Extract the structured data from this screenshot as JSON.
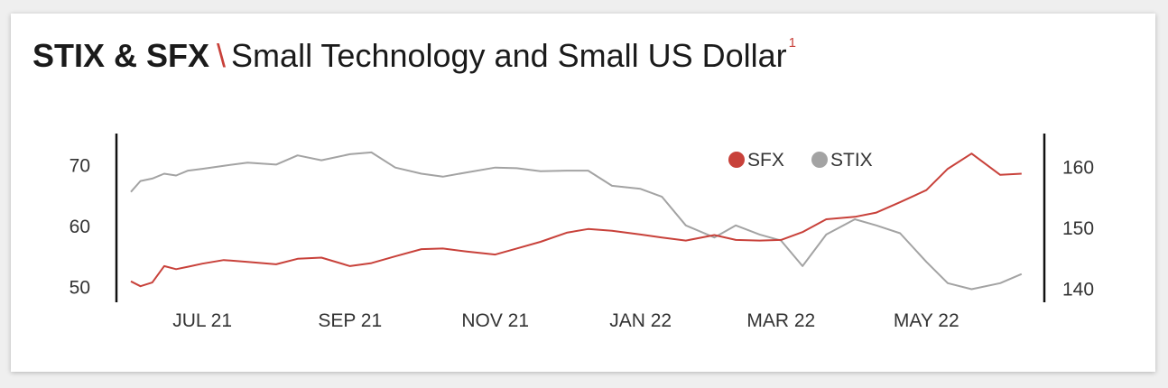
{
  "title": {
    "bold": "STIX & SFX",
    "separator": "\\",
    "rest": "Small Technology and Small US Dollar",
    "footnote": "1"
  },
  "colors": {
    "sfx": "#c8413a",
    "stix": "#a3a3a3",
    "title_separator": "#c8413a"
  },
  "chart_data": {
    "type": "line",
    "title": "STIX & SFX \\ Small Technology and Small US Dollar",
    "legend_position": "top-right",
    "grid": false,
    "x_start": "2021-06-01",
    "x_end": "2022-06-15",
    "x_ticks": [
      {
        "date": "2021-07-01",
        "label": "JUL 21"
      },
      {
        "date": "2021-09-01",
        "label": "SEP 21"
      },
      {
        "date": "2021-11-01",
        "label": "NOV 21"
      },
      {
        "date": "2022-01-01",
        "label": "JAN 22"
      },
      {
        "date": "2022-03-01",
        "label": "MAR 22"
      },
      {
        "date": "2022-05-01",
        "label": "MAY 22"
      }
    ],
    "y_left": {
      "range": [
        48,
        75
      ],
      "ticks": [
        50,
        60,
        70
      ]
    },
    "y_right": {
      "range": [
        138.3,
        165.3
      ],
      "ticks": [
        140,
        150,
        160
      ]
    },
    "series": [
      {
        "name": "SFX",
        "axis": "left",
        "color": "#c8413a",
        "x": [
          "2021-06-01",
          "2021-06-05",
          "2021-06-10",
          "2021-06-15",
          "2021-06-20",
          "2021-06-25",
          "2021-07-01",
          "2021-07-10",
          "2021-07-20",
          "2021-08-01",
          "2021-08-10",
          "2021-08-20",
          "2021-09-01",
          "2021-09-10",
          "2021-09-20",
          "2021-10-01",
          "2021-10-10",
          "2021-10-20",
          "2021-11-01",
          "2021-11-10",
          "2021-11-20",
          "2021-12-01",
          "2021-12-10",
          "2021-12-20",
          "2022-01-01",
          "2022-01-10",
          "2022-01-20",
          "2022-02-01",
          "2022-02-10",
          "2022-02-20",
          "2022-03-01",
          "2022-03-10",
          "2022-03-20",
          "2022-04-01",
          "2022-04-10",
          "2022-04-20",
          "2022-05-01",
          "2022-05-10",
          "2022-05-20",
          "2022-06-01",
          "2022-06-10"
        ],
        "values": [
          51.0,
          50.2,
          50.8,
          53.5,
          53.0,
          53.4,
          53.9,
          54.5,
          54.2,
          53.8,
          54.7,
          54.9,
          53.5,
          54.0,
          55.1,
          56.3,
          56.4,
          55.9,
          55.4,
          56.4,
          57.5,
          59.0,
          59.6,
          59.3,
          58.7,
          58.2,
          57.7,
          58.6,
          57.8,
          57.7,
          57.8,
          59.1,
          61.2,
          61.6,
          62.3,
          64.0,
          66.0,
          69.5,
          72.0,
          68.5,
          68.7
        ]
      },
      {
        "name": "STIX",
        "axis": "right",
        "color": "#a3a3a3",
        "x": [
          "2021-06-01",
          "2021-06-05",
          "2021-06-10",
          "2021-06-15",
          "2021-06-20",
          "2021-06-25",
          "2021-07-01",
          "2021-07-10",
          "2021-07-20",
          "2021-08-01",
          "2021-08-10",
          "2021-08-20",
          "2021-09-01",
          "2021-09-10",
          "2021-09-20",
          "2021-10-01",
          "2021-10-10",
          "2021-10-20",
          "2021-11-01",
          "2021-11-10",
          "2021-11-20",
          "2021-12-01",
          "2021-12-10",
          "2021-12-20",
          "2022-01-01",
          "2022-01-10",
          "2022-01-20",
          "2022-02-01",
          "2022-02-10",
          "2022-02-20",
          "2022-03-01",
          "2022-03-10",
          "2022-03-20",
          "2022-04-01",
          "2022-04-10",
          "2022-04-20",
          "2022-05-01",
          "2022-05-10",
          "2022-05-20",
          "2022-06-01",
          "2022-06-10"
        ],
        "values": [
          156.0,
          157.8,
          158.2,
          159.0,
          158.7,
          159.5,
          159.8,
          160.3,
          160.8,
          160.5,
          162.0,
          161.2,
          162.2,
          162.5,
          160.0,
          159.0,
          158.5,
          159.2,
          160.0,
          159.9,
          159.4,
          159.5,
          159.5,
          157.0,
          156.5,
          155.2,
          150.5,
          148.5,
          150.5,
          149.0,
          148.0,
          143.8,
          149.0,
          151.5,
          150.5,
          149.2,
          144.5,
          141.0,
          140.0,
          141.0,
          142.5
        ]
      }
    ]
  }
}
